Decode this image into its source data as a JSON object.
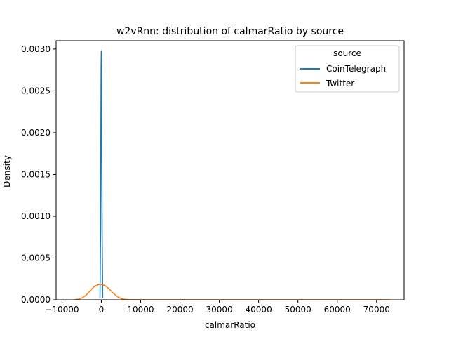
{
  "chart_data": {
    "type": "line",
    "title": "w2vRnn: distribution of calmarRatio by source",
    "xlabel": "calmarRatio",
    "ylabel": "Density",
    "xlim": [
      -11500,
      77000
    ],
    "ylim": [
      0,
      0.0031
    ],
    "x_ticks": [
      -10000,
      0,
      10000,
      20000,
      30000,
      40000,
      50000,
      60000,
      70000
    ],
    "x_tick_labels": [
      "−10000",
      "0",
      "10000",
      "20000",
      "30000",
      "40000",
      "50000",
      "60000",
      "70000"
    ],
    "y_ticks": [
      0,
      0.0005,
      0.001,
      0.0015,
      0.002,
      0.0025,
      0.003
    ],
    "y_tick_labels": [
      "0.0000",
      "0.0005",
      "0.0010",
      "0.0015",
      "0.0020",
      "0.0025",
      "0.0030"
    ],
    "grid": false,
    "legend": {
      "title": "source",
      "placement": "top-right"
    },
    "series": [
      {
        "name": "CoinTelegraph",
        "color": "#1f77b4",
        "x": [
          -350,
          -200,
          -100,
          -50,
          0,
          50,
          100,
          200,
          350
        ],
        "y": [
          2e-05,
          0.0008,
          0.0022,
          0.0028,
          0.00298,
          0.0028,
          0.0022,
          0.0008,
          2e-05
        ]
      },
      {
        "name": "Twitter",
        "color": "#ff7f0e",
        "x": [
          -6800,
          -6000,
          -5000,
          -4000,
          -3000,
          -2000,
          -1000,
          0,
          1000,
          2000,
          3000,
          4000,
          5000,
          6000,
          7000,
          10000,
          20000,
          30000,
          40000,
          50000,
          60000,
          70000,
          73500
        ],
        "y": [
          2e-06,
          6e-06,
          2e-05,
          5e-05,
          0.0001,
          0.00015,
          0.00018,
          0.000185,
          0.00017,
          0.00013,
          8e-05,
          4e-05,
          1.5e-05,
          5e-06,
          2e-06,
          5e-07,
          5e-07,
          5e-07,
          5e-07,
          5e-07,
          5e-07,
          5e-07,
          5e-07
        ]
      }
    ]
  }
}
